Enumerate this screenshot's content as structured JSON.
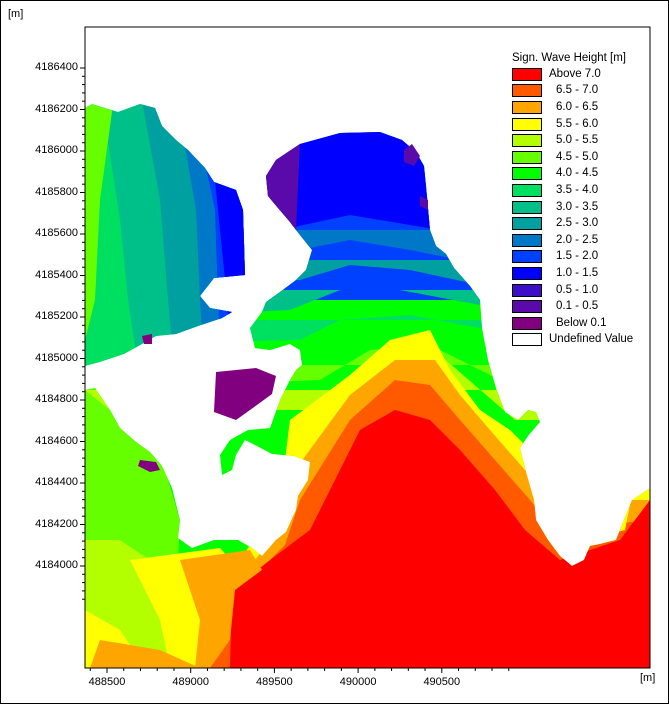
{
  "units": {
    "y": "[m]",
    "x": "[m]"
  },
  "axes": {
    "y_ticks": [
      "4186400",
      "4186200",
      "4186000",
      "4185800",
      "4185600",
      "4185400",
      "4185200",
      "4185000",
      "4184800",
      "4184600",
      "4184400",
      "4184200",
      "4184000"
    ],
    "x_ticks": [
      "488500",
      "489000",
      "489500",
      "490000",
      "490500"
    ]
  },
  "legend": {
    "title": "Sign. Wave Height [m]",
    "items": [
      {
        "label": "Above 7.0",
        "color": "#ff0000"
      },
      {
        "label": "6.5 - 7.0",
        "color": "#ff5a00"
      },
      {
        "label": "6.0 - 6.5",
        "color": "#ffa500"
      },
      {
        "label": "5.5 - 6.0",
        "color": "#ffff00"
      },
      {
        "label": "5.0 - 5.5",
        "color": "#b3ff00"
      },
      {
        "label": "4.5 - 5.0",
        "color": "#66ff00"
      },
      {
        "label": "4.0 - 4.5",
        "color": "#00ff00"
      },
      {
        "label": "3.5 - 4.0",
        "color": "#00e060"
      },
      {
        "label": "3.0 - 3.5",
        "color": "#00c08a"
      },
      {
        "label": "2.5 - 3.0",
        "color": "#00a0a0"
      },
      {
        "label": "2.0 - 2.5",
        "color": "#0078c8"
      },
      {
        "label": "1.5 - 2.0",
        "color": "#0040ff"
      },
      {
        "label": "1.0 - 1.5",
        "color": "#0000ff"
      },
      {
        "label": "0.5 - 1.0",
        "color": "#3c0ec8"
      },
      {
        "label": "0.1 - 0.5",
        "color": "#5a0aaa"
      },
      {
        "label": "Below 0.1",
        "color": "#800080"
      },
      {
        "label": "Undefined Value",
        "color": "#ffffff"
      }
    ]
  }
}
